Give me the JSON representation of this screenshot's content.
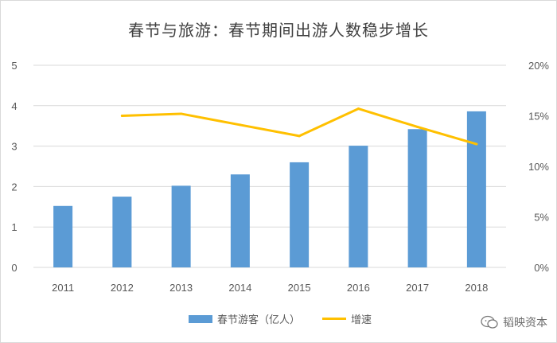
{
  "title": "春节与旅游：春节期间出游人数稳步增长",
  "watermark": "韬映资本",
  "colors": {
    "bar": "#5b9bd5",
    "line": "#ffc000",
    "grid": "#d9d9d9",
    "text": "#595959"
  },
  "chart_data": {
    "type": "bar",
    "categories": [
      "2011",
      "2012",
      "2013",
      "2014",
      "2015",
      "2016",
      "2017",
      "2018"
    ],
    "series": [
      {
        "name": "春节游客（亿人）",
        "type": "bar",
        "axis": "left",
        "values": [
          1.52,
          1.75,
          2.02,
          2.3,
          2.6,
          3.01,
          3.42,
          3.86
        ]
      },
      {
        "name": "增速",
        "type": "line",
        "axis": "right",
        "values": [
          null,
          15.0,
          15.2,
          14.1,
          13.0,
          15.7,
          13.9,
          12.2
        ]
      }
    ],
    "ylim_left": [
      0,
      5
    ],
    "yticks_left": [
      "0",
      "1",
      "2",
      "3",
      "4",
      "5"
    ],
    "ylim_right": [
      0,
      20
    ],
    "yticks_right": [
      "0%",
      "5%",
      "10%",
      "15%",
      "20%"
    ],
    "grid": true,
    "legend_position": "bottom"
  }
}
